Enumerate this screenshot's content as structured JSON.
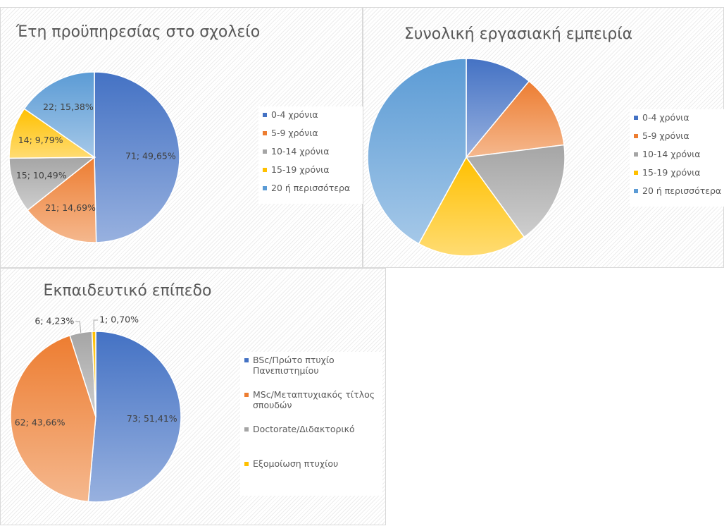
{
  "chart_data": [
    {
      "type": "pie",
      "title": "Έτη προϋπηρεσίας στο σχολείο",
      "categories": [
        "0-4 χρόνια",
        "5-9 χρόνια",
        "10-14 χρόνια",
        "15-19 χρόνια",
        "20 ή περισσότερα"
      ],
      "values": [
        71,
        21,
        15,
        14,
        22
      ],
      "value_labels": [
        "71; 49,65%",
        "21; 14,69%",
        "15; 10,49%",
        "14; 9,79%",
        "22; 15,38%"
      ],
      "colors": [
        "#4472c4",
        "#ed7d31",
        "#a5a5a5",
        "#ffc000",
        "#5b9bd5"
      ]
    },
    {
      "type": "pie",
      "title": "Συνολική εργασιακή εμπειρία",
      "categories": [
        "0-4 χρόνια",
        "5-9 χρόνια",
        "10-14 χρόνια",
        "15-19 χρόνια",
        "20 ή περισσότερα"
      ],
      "values": [
        11,
        12,
        17,
        18,
        42
      ],
      "colors": [
        "#4472c4",
        "#ed7d31",
        "#a5a5a5",
        "#ffc000",
        "#5b9bd5"
      ]
    },
    {
      "type": "pie",
      "title": "Εκπαιδευτικό επίπεδο",
      "categories": [
        "BSc/Πρώτο πτυχίο Πανεπιστημίου",
        "MSc/Μεταπτυχιακός τίτλος σπουδών",
        "Doctorate/Διδακτορικό",
        "Εξομοίωση πτυχίου"
      ],
      "values": [
        73,
        62,
        6,
        1
      ],
      "value_labels": [
        "73; 51,41%",
        "62; 43,66%",
        "6; 4,23%",
        "1; 0,70%"
      ],
      "colors": [
        "#4472c4",
        "#ed7d31",
        "#a5a5a5",
        "#ffc000"
      ]
    }
  ]
}
